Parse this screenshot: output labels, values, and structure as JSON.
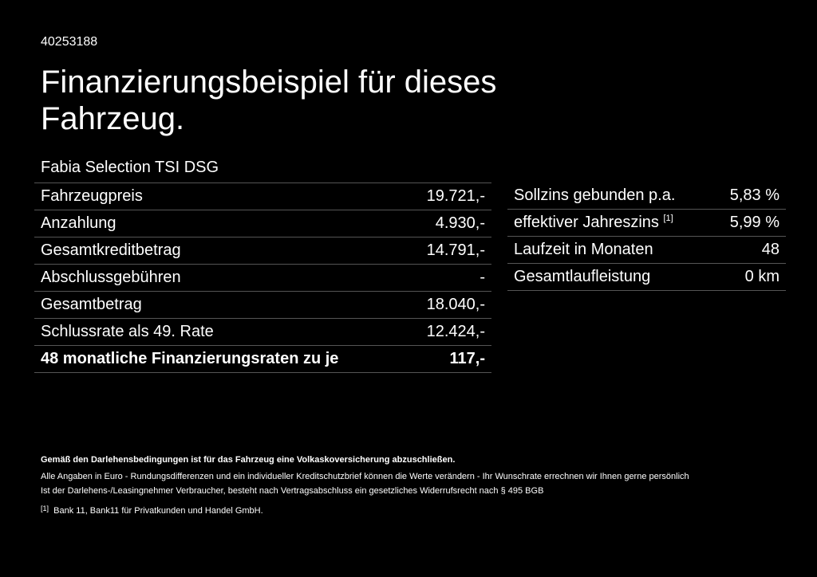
{
  "header": {
    "code": "40253188",
    "title": "Finanzierungsbeispiel für dieses Fahrzeug.",
    "model": "Fabia Selection TSI DSG"
  },
  "left_table": [
    {
      "label": "Fahrzeugpreis",
      "value": "19.721,-"
    },
    {
      "label": "Anzahlung",
      "value": "4.930,-"
    },
    {
      "label": "Gesamtkreditbetrag",
      "value": "14.791,-"
    },
    {
      "label": "Abschlussgebühren",
      "value": "-"
    },
    {
      "label": "Gesamtbetrag",
      "value": "18.040,-"
    },
    {
      "label": "Schlussrate als 49. Rate",
      "value": "12.424,-"
    },
    {
      "label": "48 monatliche Finanzierungsraten zu je",
      "value": "117,-"
    }
  ],
  "right_table": [
    {
      "label": "Sollzins gebunden p.a.",
      "value": "5,83 %"
    },
    {
      "label": "effektiver Jahreszins",
      "sup": "[1]",
      "value": "5,99 %"
    },
    {
      "label": "Laufzeit in Monaten",
      "value": "48"
    },
    {
      "label": "Gesamtlaufleistung",
      "value": "0 km"
    }
  ],
  "footer": {
    "bold": "Gemäß den Darlehensbedingungen ist für das Fahrzeug eine Volkaskoversicherung abzuschließen.",
    "line1": "Alle Angaben in Euro - Rundungsdifferenzen und ein individueller Kreditschutzbrief können die Werte verändern - Ihr Wunschrate errechnen wir Ihnen gerne persönlich",
    "line2": "Ist der Darlehens-/Leasingnehmer Verbraucher, besteht nach Vertragsabschluss ein gesetzliches Widerrufsrecht nach § 495 BGB",
    "note_mark": "[1]",
    "note": "Bank 11, Bank11 für Privatkunden und Handel GmbH."
  }
}
